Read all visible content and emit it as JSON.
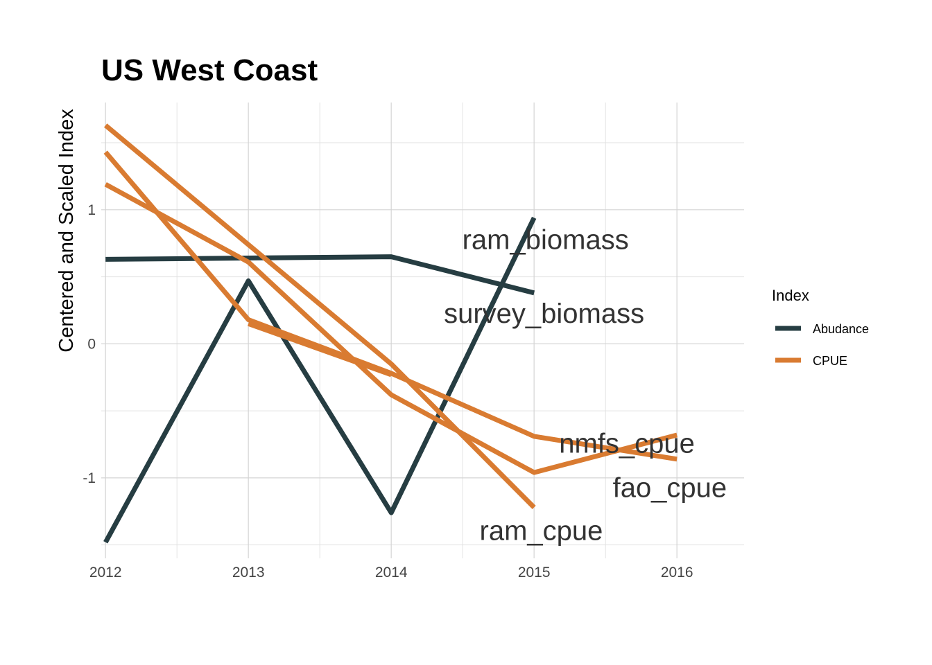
{
  "chart_data": {
    "type": "line",
    "title": "US West Coast",
    "xlabel": "",
    "ylabel": "Centered and Scaled Index",
    "xlim": [
      2011.97,
      2016.47
    ],
    "ylim": [
      -1.6,
      1.8
    ],
    "x_ticks": [
      2012,
      2013,
      2014,
      2015,
      2016
    ],
    "x_tick_labels": [
      "2012",
      "2013",
      "2014",
      "2015",
      "2016"
    ],
    "y_ticks": [
      -1,
      0,
      1
    ],
    "y_tick_labels": [
      "-1",
      "0",
      "1"
    ],
    "grid": true,
    "legend": {
      "title": "Index",
      "position": "right",
      "entries": [
        {
          "label": "Abudance",
          "color": "#263d42"
        },
        {
          "label": "CPUE",
          "color": "#d97b31"
        }
      ]
    },
    "colors": {
      "Abudance": "#263d42",
      "CPUE": "#d97b31"
    },
    "series": [
      {
        "name": "ram_biomass",
        "group": "Abudance",
        "x": [
          2012,
          2013,
          2014,
          2015
        ],
        "y": [
          -1.48,
          0.47,
          -1.26,
          0.94
        ],
        "label_at": [
          2015.08,
          0.78
        ]
      },
      {
        "name": "survey_biomass",
        "group": "Abudance",
        "x": [
          2012,
          2014,
          2015
        ],
        "y": [
          0.63,
          0.65,
          0.38
        ],
        "label_at": [
          2015.07,
          0.23
        ]
      },
      {
        "name": "ram_cpue",
        "group": "CPUE",
        "x": [
          2012,
          2014,
          2015
        ],
        "y": [
          1.63,
          -0.15,
          -1.22
        ],
        "label_at": [
          2015.05,
          -1.39
        ]
      },
      {
        "name": "nmfs_cpue",
        "group": "CPUE",
        "x": [
          2012,
          2013,
          2014,
          2015,
          2016
        ],
        "y": [
          1.43,
          0.18,
          -0.22,
          -0.69,
          -0.86
        ],
        "label_at": [
          2015.65,
          -0.74
        ]
      },
      {
        "name": "fao_cpue",
        "group": "CPUE",
        "x": [
          2012,
          2013,
          2014,
          2015,
          2016
        ],
        "y": [
          1.19,
          0.61,
          -0.38,
          -0.96,
          -0.68
        ],
        "label_at": [
          2015.95,
          -1.07
        ]
      },
      {
        "name": "",
        "group": "CPUE",
        "x": [
          2013,
          2014
        ],
        "y": [
          0.15,
          -0.23
        ],
        "label_at": null
      }
    ]
  }
}
